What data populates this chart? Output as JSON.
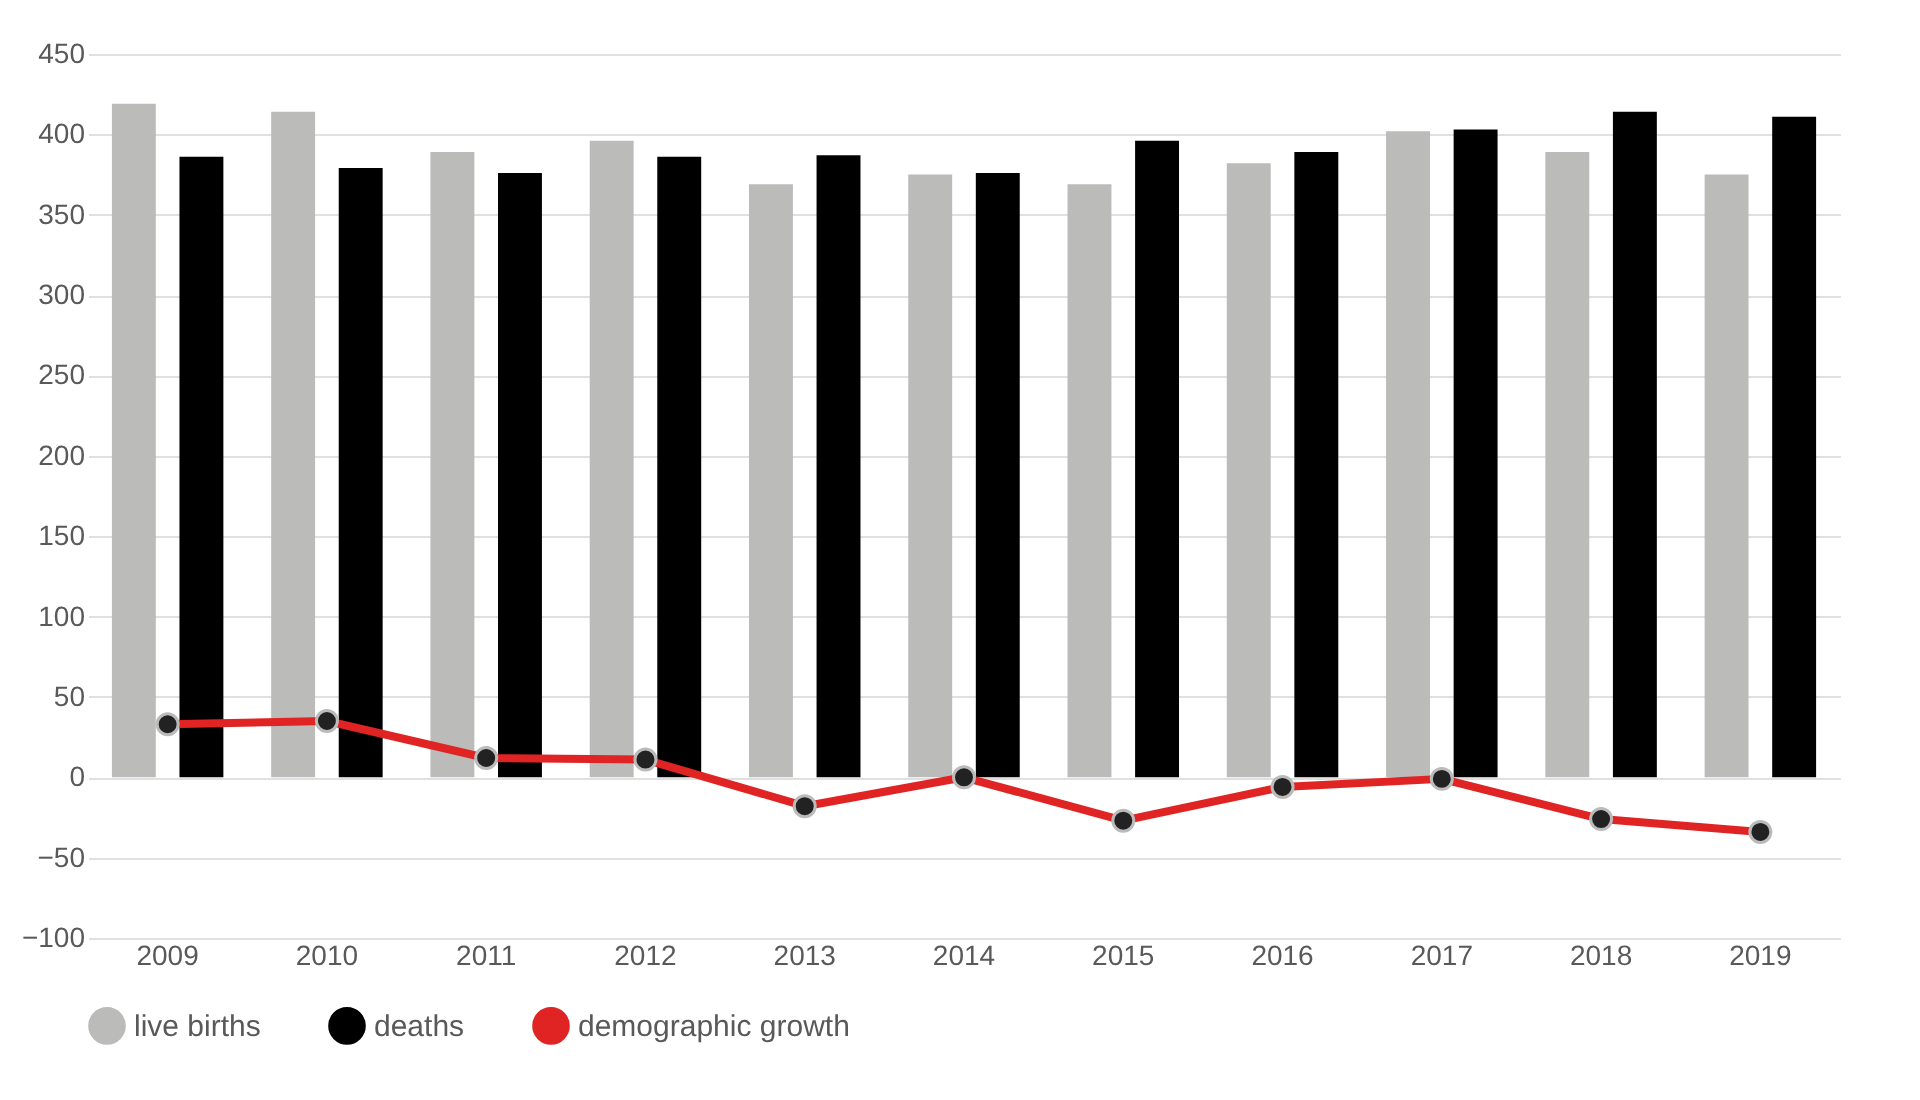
{
  "chart_data": {
    "type": "bar",
    "categories": [
      "2009",
      "2010",
      "2011",
      "2012",
      "2013",
      "2014",
      "2015",
      "2016",
      "2017",
      "2018",
      "2019"
    ],
    "series": [
      {
        "name": "live births",
        "color": "#bbbbba",
        "values": [
          419,
          414,
          389,
          396,
          369,
          375,
          369,
          382,
          402,
          389,
          375
        ]
      },
      {
        "name": "deaths",
        "color": "#000000",
        "values": [
          386,
          379,
          376,
          386,
          387,
          376,
          396,
          389,
          403,
          414,
          411
        ]
      },
      {
        "name": "demographic growth",
        "type": "line",
        "color": "#e02424",
        "values": [
          33,
          35,
          12,
          11,
          -18,
          0,
          -27,
          -6,
          -1,
          -26,
          -34
        ]
      }
    ],
    "ylim": [
      -100,
      450
    ],
    "yticks": [
      -100,
      -50,
      0,
      50,
      100,
      150,
      200,
      250,
      300,
      350,
      400,
      450
    ],
    "grid": "y",
    "legend": "bottom",
    "marker": "circle",
    "line_style": "solid"
  }
}
